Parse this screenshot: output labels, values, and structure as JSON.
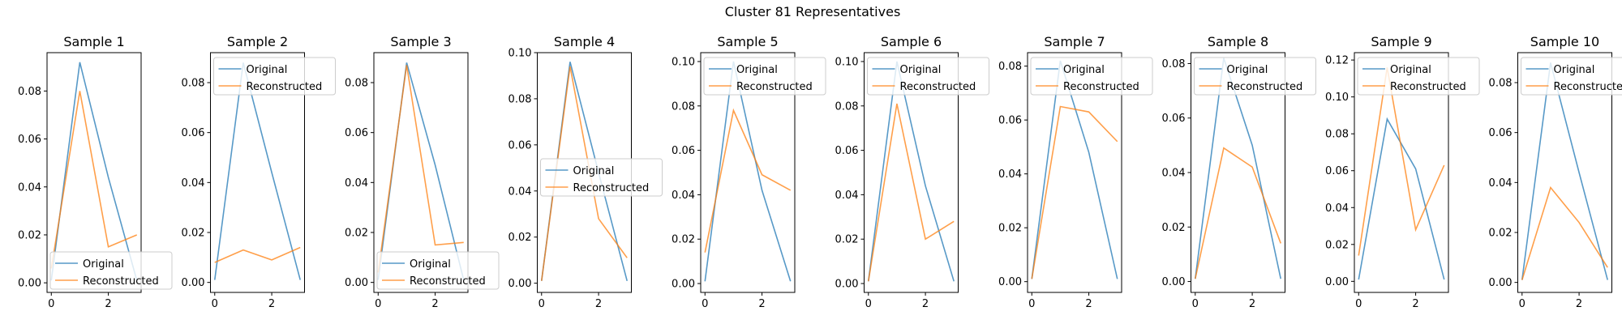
{
  "figure": {
    "title": "Cluster 81 Representatives"
  },
  "colors": {
    "original": "#1f77b4",
    "reconstructed": "#ff7f0e",
    "axes": "#000000"
  },
  "chart_data": [
    {
      "type": "line",
      "title": "Sample 1",
      "x": [
        0,
        1,
        2,
        3
      ],
      "xticks": [
        0,
        2
      ],
      "ylim": [
        -0.004,
        0.096
      ],
      "yticks": [
        0.0,
        0.02,
        0.04,
        0.06,
        0.08
      ],
      "ytick_labels": [
        "0.00",
        "0.02",
        "0.04",
        "0.06",
        "0.08"
      ],
      "legend_placement": "lower-left",
      "series": [
        {
          "name": "Original",
          "values": [
            0.001,
            0.092,
            0.044,
            0.001
          ]
        },
        {
          "name": "Reconstructed",
          "values": [
            0.006,
            0.08,
            0.015,
            0.02
          ]
        }
      ]
    },
    {
      "type": "line",
      "title": "Sample 2",
      "x": [
        0,
        1,
        2,
        3
      ],
      "xticks": [
        0,
        2
      ],
      "ylim": [
        -0.004,
        0.092
      ],
      "yticks": [
        0.0,
        0.02,
        0.04,
        0.06,
        0.08
      ],
      "ytick_labels": [
        "0.00",
        "0.02",
        "0.04",
        "0.06",
        "0.08"
      ],
      "legend_placement": "top-left",
      "series": [
        {
          "name": "Original",
          "values": [
            0.001,
            0.088,
            0.044,
            0.001
          ]
        },
        {
          "name": "Reconstructed",
          "values": [
            0.008,
            0.013,
            0.009,
            0.014
          ]
        }
      ]
    },
    {
      "type": "line",
      "title": "Sample 3",
      "x": [
        0,
        1,
        2,
        3
      ],
      "xticks": [
        0,
        2
      ],
      "ylim": [
        -0.004,
        0.092
      ],
      "yticks": [
        0.0,
        0.02,
        0.04,
        0.06,
        0.08
      ],
      "ytick_labels": [
        "0.00",
        "0.02",
        "0.04",
        "0.06",
        "0.08"
      ],
      "legend_placement": "lower-left",
      "series": [
        {
          "name": "Original",
          "values": [
            0.001,
            0.088,
            0.047,
            0.001
          ]
        },
        {
          "name": "Reconstructed",
          "values": [
            0.004,
            0.087,
            0.015,
            0.016
          ]
        }
      ]
    },
    {
      "type": "line",
      "title": "Sample 4",
      "x": [
        0,
        1,
        2,
        3
      ],
      "xticks": [
        0,
        2
      ],
      "ylim": [
        -0.004,
        0.1
      ],
      "yticks": [
        0.0,
        0.02,
        0.04,
        0.06,
        0.08,
        0.1
      ],
      "ytick_labels": [
        "0.00",
        "0.02",
        "0.04",
        "0.06",
        "0.08",
        "0.10"
      ],
      "legend_placement": "center-left",
      "series": [
        {
          "name": "Original",
          "values": [
            0.001,
            0.096,
            0.048,
            0.001
          ]
        },
        {
          "name": "Reconstructed",
          "values": [
            0.001,
            0.094,
            0.028,
            0.011
          ]
        }
      ]
    },
    {
      "type": "line",
      "title": "Sample 5",
      "x": [
        0,
        1,
        2,
        3
      ],
      "xticks": [
        0,
        2
      ],
      "ylim": [
        -0.004,
        0.104
      ],
      "yticks": [
        0.0,
        0.02,
        0.04,
        0.06,
        0.08,
        0.1
      ],
      "ytick_labels": [
        "0.00",
        "0.02",
        "0.04",
        "0.06",
        "0.08",
        "0.10"
      ],
      "legend_placement": "top-left",
      "series": [
        {
          "name": "Original",
          "values": [
            0.001,
            0.1,
            0.042,
            0.001
          ]
        },
        {
          "name": "Reconstructed",
          "values": [
            0.014,
            0.078,
            0.049,
            0.042
          ]
        }
      ]
    },
    {
      "type": "line",
      "title": "Sample 6",
      "x": [
        0,
        1,
        2,
        3
      ],
      "xticks": [
        0,
        2
      ],
      "ylim": [
        -0.004,
        0.104
      ],
      "yticks": [
        0.0,
        0.02,
        0.04,
        0.06,
        0.08,
        0.1
      ],
      "ytick_labels": [
        "0.00",
        "0.02",
        "0.04",
        "0.06",
        "0.08",
        "0.10"
      ],
      "legend_placement": "top-left",
      "series": [
        {
          "name": "Original",
          "values": [
            0.001,
            0.1,
            0.044,
            0.001
          ]
        },
        {
          "name": "Reconstructed",
          "values": [
            0.001,
            0.081,
            0.02,
            0.028
          ]
        }
      ]
    },
    {
      "type": "line",
      "title": "Sample 7",
      "x": [
        0,
        1,
        2,
        3
      ],
      "xticks": [
        0,
        2
      ],
      "ylim": [
        -0.004,
        0.085
      ],
      "yticks": [
        0.0,
        0.02,
        0.04,
        0.06,
        0.08
      ],
      "ytick_labels": [
        "0.00",
        "0.02",
        "0.04",
        "0.06",
        "0.08"
      ],
      "legend_placement": "top-left",
      "series": [
        {
          "name": "Original",
          "values": [
            0.001,
            0.082,
            0.048,
            0.001
          ]
        },
        {
          "name": "Reconstructed",
          "values": [
            0.001,
            0.065,
            0.063,
            0.052
          ]
        }
      ]
    },
    {
      "type": "line",
      "title": "Sample 8",
      "x": [
        0,
        1,
        2,
        3
      ],
      "xticks": [
        0,
        2
      ],
      "ylim": [
        -0.004,
        0.084
      ],
      "yticks": [
        0.0,
        0.02,
        0.04,
        0.06,
        0.08
      ],
      "ytick_labels": [
        "0.00",
        "0.02",
        "0.04",
        "0.06",
        "0.08"
      ],
      "legend_placement": "top-left",
      "series": [
        {
          "name": "Original",
          "values": [
            0.001,
            0.082,
            0.05,
            0.001
          ]
        },
        {
          "name": "Reconstructed",
          "values": [
            0.001,
            0.049,
            0.042,
            0.014
          ]
        }
      ]
    },
    {
      "type": "line",
      "title": "Sample 9",
      "x": [
        0,
        1,
        2,
        3
      ],
      "xticks": [
        0,
        2
      ],
      "ylim": [
        -0.006,
        0.124
      ],
      "yticks": [
        0.0,
        0.02,
        0.04,
        0.06,
        0.08,
        0.1,
        0.12
      ],
      "ytick_labels": [
        "0.00",
        "0.02",
        "0.04",
        "0.06",
        "0.08",
        "0.10",
        "0.12"
      ],
      "legend_placement": "top-left",
      "series": [
        {
          "name": "Original",
          "values": [
            0.001,
            0.088,
            0.061,
            0.001
          ]
        },
        {
          "name": "Reconstructed",
          "values": [
            0.014,
            0.116,
            0.028,
            0.063
          ]
        }
      ]
    },
    {
      "type": "line",
      "title": "Sample 10",
      "x": [
        0,
        1,
        2,
        3
      ],
      "xticks": [
        0,
        2
      ],
      "ylim": [
        -0.004,
        0.092
      ],
      "yticks": [
        0.0,
        0.02,
        0.04,
        0.06,
        0.08
      ],
      "ytick_labels": [
        "0.00",
        "0.02",
        "0.04",
        "0.06",
        "0.08"
      ],
      "legend_placement": "top-left",
      "series": [
        {
          "name": "Original",
          "values": [
            0.001,
            0.088,
            0.044,
            0.001
          ]
        },
        {
          "name": "Reconstructed",
          "values": [
            0.001,
            0.038,
            0.024,
            0.006
          ]
        }
      ]
    }
  ]
}
